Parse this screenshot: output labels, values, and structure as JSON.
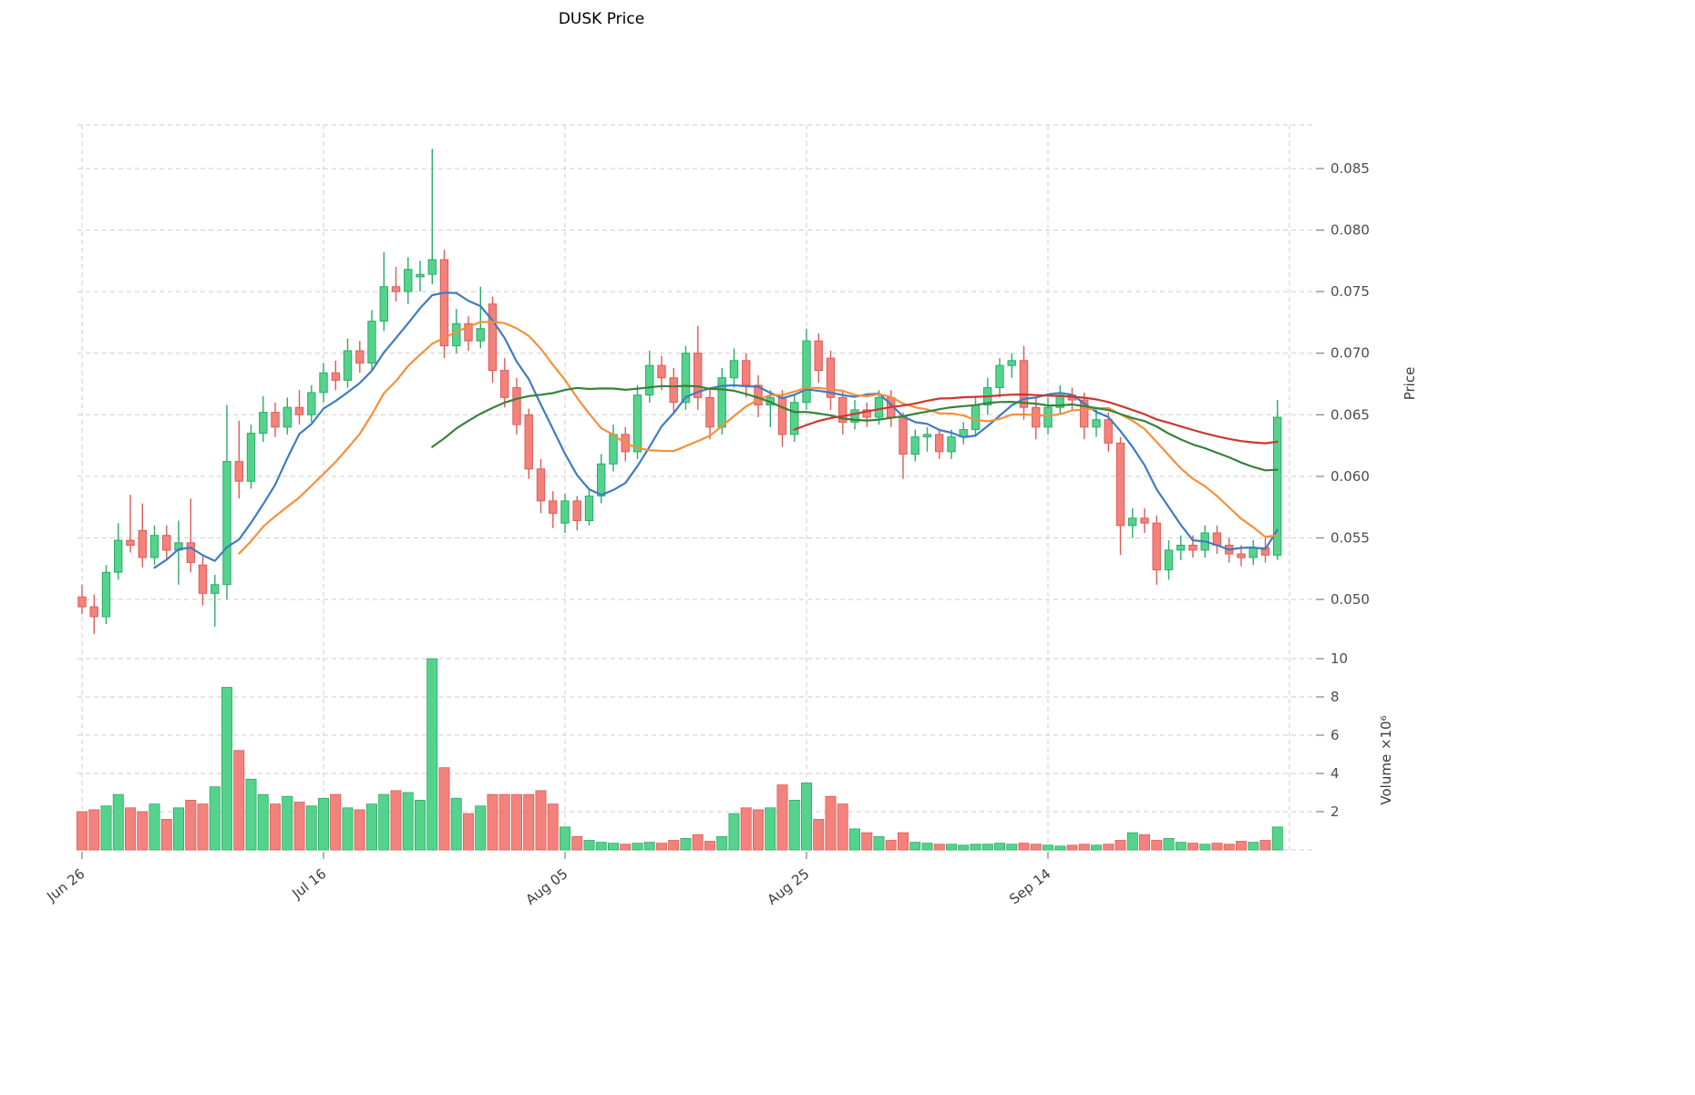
{
  "chart_data": {
    "type": "candlestick",
    "title": "DUSK Price",
    "price_axis": {
      "label": "Price",
      "side": "right",
      "ticks": [
        0.05,
        0.055,
        0.06,
        0.065,
        0.07,
        0.075,
        0.08,
        0.085
      ]
    },
    "volume_axis": {
      "label": "Volume ×10⁶",
      "side": "right",
      "ticks": [
        2,
        4,
        6,
        8,
        10
      ]
    },
    "x_axis": {
      "ticks": [
        {
          "index": 0,
          "label": "Jun 26"
        },
        {
          "index": 20,
          "label": "Jul 16"
        },
        {
          "index": 40,
          "label": "Aug 05"
        },
        {
          "index": 60,
          "label": "Aug 25"
        },
        {
          "index": 80,
          "label": "Sep 14"
        },
        {
          "index": 100,
          "label": ""
        }
      ]
    },
    "colors": {
      "up": "#55d38c",
      "up_edge": "#2bab68",
      "down": "#f3827d",
      "down_edge": "#de5b56",
      "ma_fast": "#3f7cbf",
      "ma_mid": "#f88f3c",
      "ma_slow": "#38813c",
      "ma_slowest": "#cc3732",
      "grid": "#cdcdcd",
      "tick_text": "#4d4d4d"
    },
    "ma_lines": [
      {
        "name": "ma-line-fast",
        "window": 7,
        "color": "#3f7cbf"
      },
      {
        "name": "ma-line-mid",
        "window": 14,
        "color": "#f88f3c"
      },
      {
        "name": "ma-line-slow",
        "window": 30,
        "color": "#38813c"
      },
      {
        "name": "ma-line-slowest",
        "window": 60,
        "color": "#cc3732"
      }
    ],
    "candles_format": [
      "open",
      "high",
      "low",
      "close",
      "volume_millions"
    ],
    "candles": [
      [
        0.0502,
        0.0512,
        0.0488,
        0.0494,
        2.0
      ],
      [
        0.0494,
        0.0504,
        0.0472,
        0.0486,
        2.1
      ],
      [
        0.0486,
        0.0528,
        0.048,
        0.0522,
        2.3
      ],
      [
        0.0522,
        0.0562,
        0.0516,
        0.0548,
        2.9
      ],
      [
        0.0548,
        0.0585,
        0.0538,
        0.0544,
        2.2
      ],
      [
        0.0556,
        0.0578,
        0.0526,
        0.0534,
        2.0
      ],
      [
        0.0534,
        0.056,
        0.0528,
        0.0552,
        2.4
      ],
      [
        0.0552,
        0.056,
        0.0532,
        0.054,
        1.6
      ],
      [
        0.054,
        0.0564,
        0.0512,
        0.0546,
        2.2
      ],
      [
        0.0546,
        0.0582,
        0.0522,
        0.053,
        2.6
      ],
      [
        0.0528,
        0.0535,
        0.0495,
        0.0505,
        2.4
      ],
      [
        0.0505,
        0.052,
        0.0478,
        0.0512,
        3.3
      ],
      [
        0.0512,
        0.0658,
        0.05,
        0.0612,
        8.5
      ],
      [
        0.0612,
        0.0645,
        0.0582,
        0.0596,
        5.2
      ],
      [
        0.0596,
        0.0642,
        0.059,
        0.0635,
        3.7
      ],
      [
        0.0635,
        0.0665,
        0.0628,
        0.0652,
        2.9
      ],
      [
        0.0652,
        0.066,
        0.0632,
        0.064,
        2.4
      ],
      [
        0.064,
        0.0664,
        0.0634,
        0.0656,
        2.8
      ],
      [
        0.0656,
        0.067,
        0.0642,
        0.065,
        2.5
      ],
      [
        0.065,
        0.0674,
        0.0644,
        0.0668,
        2.3
      ],
      [
        0.0668,
        0.0692,
        0.066,
        0.0684,
        2.7
      ],
      [
        0.0684,
        0.0694,
        0.067,
        0.0678,
        2.9
      ],
      [
        0.0678,
        0.0712,
        0.0672,
        0.0702,
        2.2
      ],
      [
        0.0702,
        0.071,
        0.0684,
        0.0692,
        2.1
      ],
      [
        0.0692,
        0.0735,
        0.0686,
        0.0726,
        2.4
      ],
      [
        0.0726,
        0.0782,
        0.0718,
        0.0754,
        2.9
      ],
      [
        0.0754,
        0.077,
        0.0742,
        0.075,
        3.1
      ],
      [
        0.075,
        0.0778,
        0.074,
        0.0768,
        3.0
      ],
      [
        0.0762,
        0.0775,
        0.075,
        0.0764,
        2.6
      ],
      [
        0.0764,
        0.0866,
        0.0756,
        0.0776,
        10.0
      ],
      [
        0.0776,
        0.0784,
        0.0696,
        0.0706,
        4.3
      ],
      [
        0.0706,
        0.0736,
        0.07,
        0.0724,
        2.7
      ],
      [
        0.0724,
        0.073,
        0.0702,
        0.071,
        1.9
      ],
      [
        0.071,
        0.0754,
        0.0704,
        0.072,
        2.3
      ],
      [
        0.074,
        0.0746,
        0.0676,
        0.0686,
        2.9
      ],
      [
        0.0686,
        0.0696,
        0.0656,
        0.0664,
        2.9
      ],
      [
        0.0672,
        0.068,
        0.0634,
        0.0642,
        2.9
      ],
      [
        0.065,
        0.0655,
        0.0598,
        0.0606,
        2.9
      ],
      [
        0.0606,
        0.0614,
        0.057,
        0.058,
        3.1
      ],
      [
        0.058,
        0.0588,
        0.0558,
        0.057,
        2.4
      ],
      [
        0.0562,
        0.0586,
        0.0554,
        0.058,
        1.2
      ],
      [
        0.058,
        0.0584,
        0.0556,
        0.0564,
        0.7
      ],
      [
        0.0564,
        0.059,
        0.056,
        0.0584,
        0.5
      ],
      [
        0.0584,
        0.0618,
        0.0578,
        0.061,
        0.4
      ],
      [
        0.061,
        0.0642,
        0.0604,
        0.0634,
        0.35
      ],
      [
        0.0634,
        0.064,
        0.0612,
        0.062,
        0.3
      ],
      [
        0.062,
        0.0674,
        0.0614,
        0.0666,
        0.35
      ],
      [
        0.0666,
        0.0702,
        0.066,
        0.069,
        0.4
      ],
      [
        0.069,
        0.0698,
        0.067,
        0.068,
        0.35
      ],
      [
        0.068,
        0.0688,
        0.0652,
        0.066,
        0.5
      ],
      [
        0.066,
        0.0706,
        0.0654,
        0.07,
        0.6
      ],
      [
        0.07,
        0.0722,
        0.0654,
        0.0664,
        0.8
      ],
      [
        0.0664,
        0.0672,
        0.063,
        0.064,
        0.45
      ],
      [
        0.064,
        0.0688,
        0.0634,
        0.068,
        0.7
      ],
      [
        0.068,
        0.0704,
        0.0672,
        0.0694,
        1.9
      ],
      [
        0.0694,
        0.07,
        0.0664,
        0.0674,
        2.2
      ],
      [
        0.0674,
        0.0682,
        0.0648,
        0.0658,
        2.1
      ],
      [
        0.0658,
        0.067,
        0.064,
        0.0664,
        2.2
      ],
      [
        0.0664,
        0.067,
        0.0624,
        0.0634,
        3.4
      ],
      [
        0.0634,
        0.0666,
        0.0628,
        0.066,
        2.6
      ],
      [
        0.066,
        0.072,
        0.0654,
        0.071,
        3.5
      ],
      [
        0.071,
        0.0716,
        0.0676,
        0.0686,
        1.6
      ],
      [
        0.0696,
        0.0702,
        0.0654,
        0.0664,
        2.8
      ],
      [
        0.0664,
        0.067,
        0.0634,
        0.0644,
        2.4
      ],
      [
        0.0644,
        0.0662,
        0.0638,
        0.0654,
        1.1
      ],
      [
        0.0654,
        0.066,
        0.064,
        0.0648,
        0.9
      ],
      [
        0.0648,
        0.067,
        0.0642,
        0.0664,
        0.7
      ],
      [
        0.0664,
        0.067,
        0.064,
        0.0648,
        0.5
      ],
      [
        0.0648,
        0.0652,
        0.0598,
        0.0618,
        0.9
      ],
      [
        0.0618,
        0.0638,
        0.0612,
        0.0632,
        0.4
      ],
      [
        0.0632,
        0.064,
        0.062,
        0.0634,
        0.35
      ],
      [
        0.0634,
        0.0638,
        0.0614,
        0.062,
        0.3
      ],
      [
        0.062,
        0.0638,
        0.0614,
        0.0632,
        0.3
      ],
      [
        0.0632,
        0.0644,
        0.0626,
        0.0638,
        0.25
      ],
      [
        0.0638,
        0.0664,
        0.0632,
        0.0658,
        0.3
      ],
      [
        0.0658,
        0.068,
        0.065,
        0.0672,
        0.3
      ],
      [
        0.0672,
        0.0696,
        0.0664,
        0.069,
        0.35
      ],
      [
        0.069,
        0.07,
        0.068,
        0.0694,
        0.3
      ],
      [
        0.0694,
        0.0706,
        0.0646,
        0.0656,
        0.35
      ],
      [
        0.0656,
        0.0664,
        0.063,
        0.064,
        0.3
      ],
      [
        0.064,
        0.0664,
        0.0634,
        0.0656,
        0.25
      ],
      [
        0.0656,
        0.0674,
        0.065,
        0.0666,
        0.2
      ],
      [
        0.0666,
        0.0672,
        0.0654,
        0.0662,
        0.25
      ],
      [
        0.0662,
        0.0668,
        0.063,
        0.064,
        0.3
      ],
      [
        0.064,
        0.0654,
        0.0632,
        0.0646,
        0.25
      ],
      [
        0.0646,
        0.0652,
        0.062,
        0.0627,
        0.3
      ],
      [
        0.0627,
        0.0632,
        0.0536,
        0.056,
        0.5
      ],
      [
        0.056,
        0.0574,
        0.055,
        0.0566,
        0.9
      ],
      [
        0.0566,
        0.0574,
        0.0554,
        0.0562,
        0.8
      ],
      [
        0.0562,
        0.0568,
        0.0512,
        0.0524,
        0.5
      ],
      [
        0.0524,
        0.0548,
        0.0516,
        0.054,
        0.6
      ],
      [
        0.054,
        0.0552,
        0.0532,
        0.0544,
        0.4
      ],
      [
        0.0544,
        0.0552,
        0.0534,
        0.054,
        0.35
      ],
      [
        0.054,
        0.056,
        0.0534,
        0.0554,
        0.3
      ],
      [
        0.0554,
        0.056,
        0.0537,
        0.0544,
        0.35
      ],
      [
        0.0544,
        0.055,
        0.053,
        0.0537,
        0.3
      ],
      [
        0.0537,
        0.0544,
        0.0527,
        0.0534,
        0.45
      ],
      [
        0.0534,
        0.0548,
        0.0528,
        0.0542,
        0.4
      ],
      [
        0.0542,
        0.055,
        0.053,
        0.0536,
        0.5
      ],
      [
        0.0536,
        0.0662,
        0.0532,
        0.0648,
        1.2
      ]
    ]
  }
}
